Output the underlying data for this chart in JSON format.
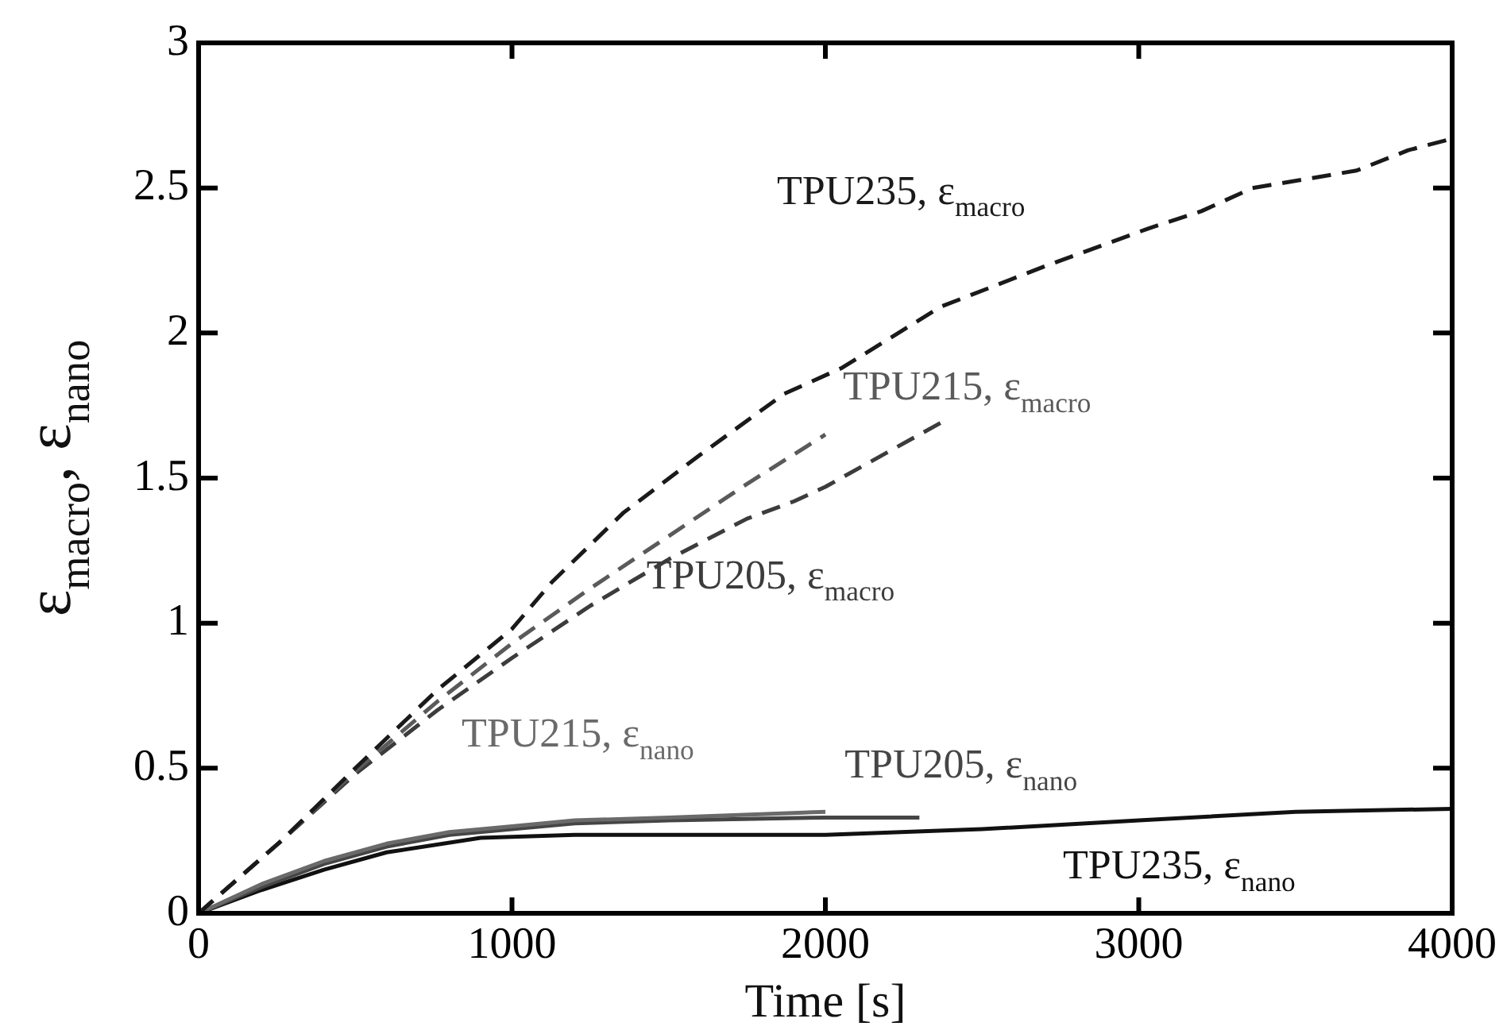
{
  "chart_data": {
    "type": "line",
    "xlabel": "Time [s]",
    "ylabel": "ε$_{macro}$, ε$_{nano}$",
    "xlim": [
      0,
      4000
    ],
    "xticks": [
      0,
      1000,
      2000,
      3000,
      4000
    ],
    "ylim": [
      0,
      3
    ],
    "yticks": [
      0,
      0.5,
      1,
      1.5,
      2,
      2.5,
      3
    ],
    "marker": "none",
    "series": [
      {
        "name": "TPU235, ε$_{macro}$",
        "color": "#1a1a1a",
        "line_style": "dashed",
        "x": [
          0,
          264,
          500,
          762,
          1000,
          1126,
          1355,
          1600,
          1868,
          2053,
          2367,
          2700,
          3030,
          3200,
          3363,
          3530,
          3695,
          3860,
          4000
        ],
        "values": [
          0,
          0.25,
          0.5,
          0.77,
          0.98,
          1.14,
          1.38,
          1.58,
          1.79,
          1.88,
          2.09,
          2.23,
          2.36,
          2.42,
          2.5,
          2.53,
          2.56,
          2.63,
          2.67
        ]
      },
      {
        "name": "TPU215, ε$_{macro}$",
        "color": "#5a5a5a",
        "line_style": "dashed",
        "x": [
          0,
          264,
          500,
          762,
          1000,
          1250,
          1500,
          1750,
          2000
        ],
        "values": [
          0,
          0.25,
          0.49,
          0.73,
          0.93,
          1.12,
          1.3,
          1.48,
          1.65
        ]
      },
      {
        "name": "TPU205, ε$_{macro}$",
        "color": "#3c3c3c",
        "line_style": "dashed",
        "x": [
          0,
          264,
          500,
          762,
          1000,
          1250,
          1500,
          1750,
          1900,
          2000,
          2200,
          2367
        ],
        "values": [
          0,
          0.25,
          0.48,
          0.7,
          0.88,
          1.06,
          1.22,
          1.36,
          1.42,
          1.47,
          1.59,
          1.69
        ]
      },
      {
        "name": "TPU215, ε$_{nano}$",
        "color": "#6a6a6a",
        "line_style": "solid",
        "x": [
          0,
          200,
          400,
          600,
          800,
          1000,
          1200,
          1500,
          2000
        ],
        "values": [
          0,
          0.1,
          0.18,
          0.24,
          0.28,
          0.3,
          0.32,
          0.33,
          0.35
        ]
      },
      {
        "name": "TPU205, ε$_{nano}$",
        "color": "#454545",
        "line_style": "solid",
        "x": [
          0,
          200,
          400,
          600,
          800,
          1000,
          1200,
          1500,
          2000,
          2300
        ],
        "values": [
          0,
          0.09,
          0.17,
          0.23,
          0.27,
          0.29,
          0.31,
          0.32,
          0.33,
          0.33
        ]
      },
      {
        "name": "TPU235, ε$_{nano}$",
        "color": "#111111",
        "line_style": "solid",
        "x": [
          0,
          200,
          400,
          600,
          900,
          1200,
          1500,
          2000,
          2500,
          3000,
          3500,
          4000
        ],
        "values": [
          0,
          0.08,
          0.15,
          0.21,
          0.26,
          0.27,
          0.27,
          0.27,
          0.29,
          0.32,
          0.35,
          0.36
        ]
      }
    ]
  }
}
